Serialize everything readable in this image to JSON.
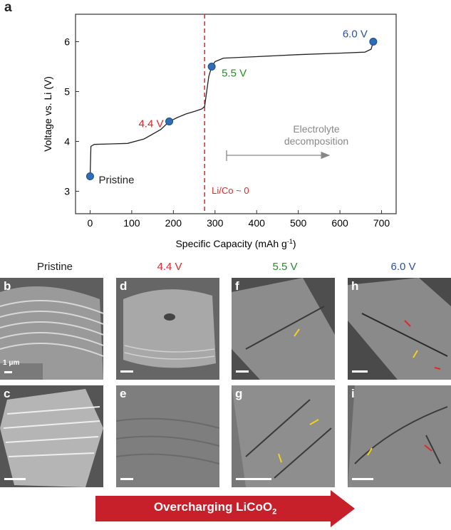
{
  "panel_a": {
    "label": "a",
    "chart_data": {
      "type": "line",
      "xlabel": "Specific Capacity (mAh g",
      "xlabel_sup": "-1",
      "xlabel_end": ")",
      "ylabel": "Voltage vs. Li (V)",
      "xlim": [
        -35,
        735
      ],
      "ylim": [
        2.55,
        6.55
      ],
      "xticks": [
        0,
        100,
        200,
        300,
        400,
        500,
        600,
        700
      ],
      "yticks": [
        3,
        4,
        5,
        6
      ],
      "grid": false,
      "curve": [
        [
          0,
          3.3
        ],
        [
          2,
          3.9
        ],
        [
          10,
          3.94
        ],
        [
          50,
          3.95
        ],
        [
          90,
          3.96
        ],
        [
          130,
          4.05
        ],
        [
          170,
          4.24
        ],
        [
          190,
          4.4
        ],
        [
          210,
          4.48
        ],
        [
          230,
          4.55
        ],
        [
          250,
          4.6
        ],
        [
          268,
          4.65
        ],
        [
          275,
          4.7
        ],
        [
          280,
          5.0
        ],
        [
          285,
          5.3
        ],
        [
          292,
          5.5
        ],
        [
          300,
          5.6
        ],
        [
          320,
          5.67
        ],
        [
          400,
          5.7
        ],
        [
          500,
          5.74
        ],
        [
          600,
          5.77
        ],
        [
          660,
          5.79
        ],
        [
          675,
          5.85
        ],
        [
          680,
          6.0
        ]
      ],
      "points": [
        {
          "x": 0,
          "y": 3.3,
          "label": "Pristine",
          "color": "#222222"
        },
        {
          "x": 190,
          "y": 4.4,
          "label": "4.4 V",
          "color": "#e0262a"
        },
        {
          "x": 292,
          "y": 5.5,
          "label": "5.5 V",
          "color": "#2a8a2a"
        },
        {
          "x": 680,
          "y": 6.0,
          "label": "6.0 V",
          "color": "#2b4fa5"
        }
      ],
      "vline": {
        "x": 275,
        "label": "Li/Co ~ 0",
        "color": "#e0262a"
      },
      "annotation": {
        "text_line1": "Electrolyte",
        "text_line2": "decomposition",
        "color": "#888888"
      },
      "marker_color": "#2f6db5"
    }
  },
  "columns": [
    {
      "title": "Pristine",
      "color": "#222222"
    },
    {
      "title": "4.4 V",
      "color": "#e0262a"
    },
    {
      "title": "5.5 V",
      "color": "#2a8a2a"
    },
    {
      "title": "6.0 V",
      "color": "#2b4fa5"
    }
  ],
  "panels": {
    "b": "b",
    "c": "c",
    "d": "d",
    "e": "e",
    "f": "f",
    "g": "g",
    "h": "h",
    "i": "i"
  },
  "scale_label": "1 μm",
  "banner": {
    "text": "Overcharging LiCoO",
    "sub": "2",
    "color": "#c8202a"
  },
  "arrow_color": "#f2d21a",
  "red_arrow_color": "#e0262a"
}
